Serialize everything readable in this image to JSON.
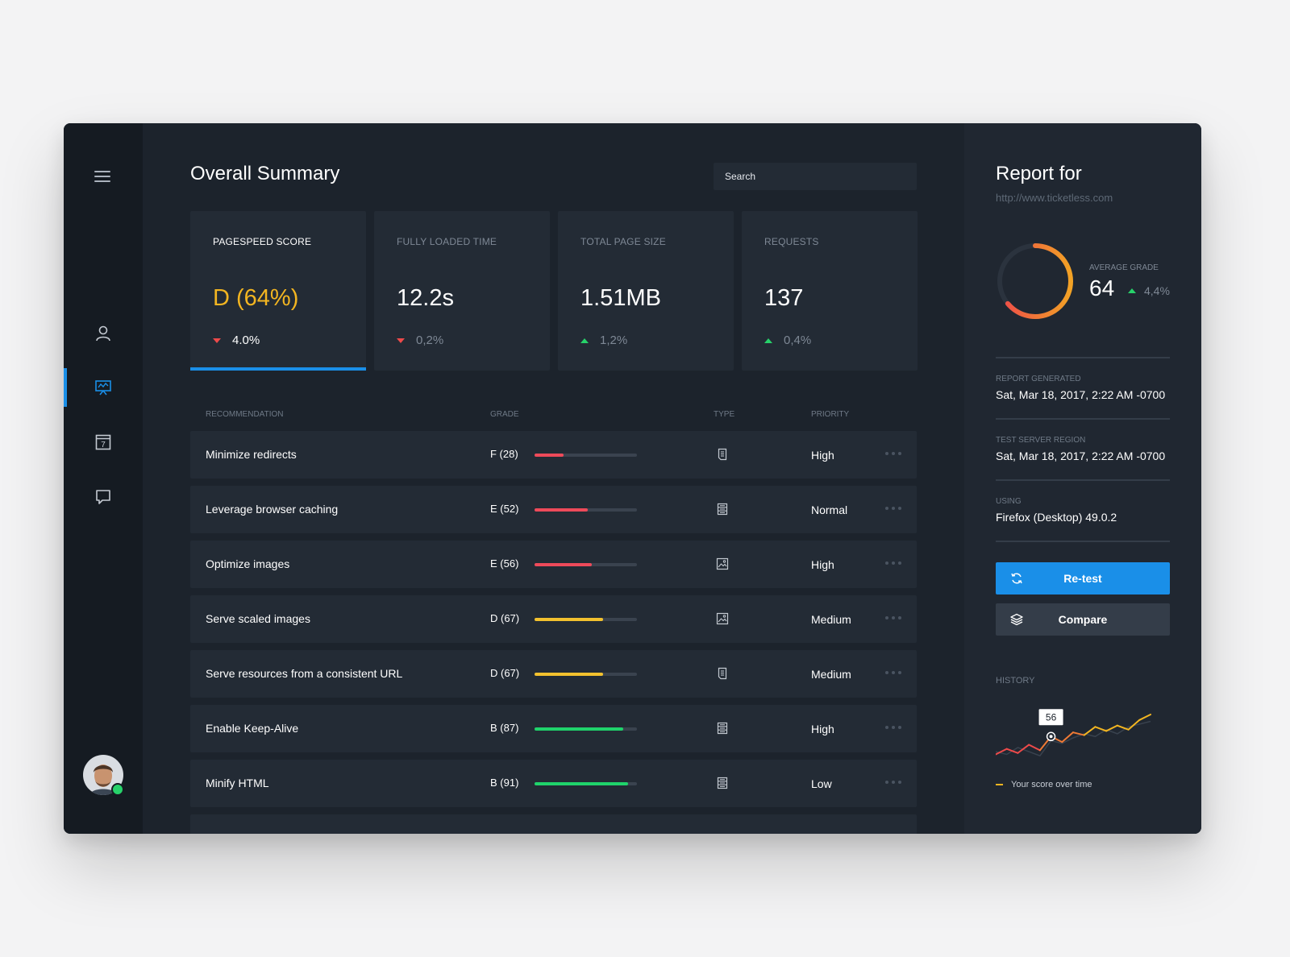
{
  "nav": {
    "items": [
      {
        "name": "user-icon",
        "active": false
      },
      {
        "name": "presentation-icon",
        "active": true
      },
      {
        "name": "calendar-icon",
        "active": false,
        "badge": "7"
      },
      {
        "name": "chat-icon",
        "active": false
      }
    ]
  },
  "header": {
    "title": "Overall Summary",
    "search_placeholder": "Search"
  },
  "cards": [
    {
      "label": "PAGESPEED SCORE",
      "value": "D (64%)",
      "delta": "4.0%",
      "direction": "down",
      "active": true
    },
    {
      "label": "FULLY LOADED TIME",
      "value": "12.2s",
      "delta": "0,2%",
      "direction": "down",
      "active": false
    },
    {
      "label": "TOTAL PAGE SIZE",
      "value": "1.51MB",
      "delta": "1,2%",
      "direction": "up",
      "active": false
    },
    {
      "label": "REQUESTS",
      "value": "137",
      "delta": "0,4%",
      "direction": "up",
      "active": false
    }
  ],
  "table": {
    "headers": {
      "recommendation": "RECOMMENDATION",
      "grade": "GRADE",
      "type": "TYPE",
      "priority": "PRIORITY"
    },
    "rows": [
      {
        "recommendation": "Minimize redirects",
        "grade": "F (28)",
        "score": 28,
        "type_icon": "document-icon",
        "priority": "High"
      },
      {
        "recommendation": "Leverage browser caching",
        "grade": "E (52)",
        "score": 52,
        "type_icon": "server-icon",
        "priority": "Normal"
      },
      {
        "recommendation": "Optimize images",
        "grade": "E (56)",
        "score": 56,
        "type_icon": "image-icon",
        "priority": "High"
      },
      {
        "recommendation": "Serve scaled images",
        "grade": "D (67)",
        "score": 67,
        "type_icon": "image-icon",
        "priority": "Medium"
      },
      {
        "recommendation": "Serve resources from a consistent URL",
        "grade": "D (67)",
        "score": 67,
        "type_icon": "document-icon",
        "priority": "Medium"
      },
      {
        "recommendation": "Enable Keep-Alive",
        "grade": "B (87)",
        "score": 87,
        "type_icon": "server-icon",
        "priority": "High"
      },
      {
        "recommendation": "Minify HTML",
        "grade": "B (91)",
        "score": 91,
        "type_icon": "server-icon",
        "priority": "Low"
      }
    ]
  },
  "report": {
    "title": "Report for",
    "url": "http://www.ticketless.com",
    "average_grade_label": "AVERAGE GRADE",
    "average_grade": "64",
    "average_grade_fraction": 0.64,
    "average_delta": "4,4%",
    "info": [
      {
        "label": "REPORT GENERATED",
        "value": "Sat, Mar 18, 2017, 2:22 AM -0700"
      },
      {
        "label": "TEST SERVER REGION",
        "value": "Sat, Mar 18, 2017, 2:22 AM -0700"
      },
      {
        "label": "USING",
        "value": "Firefox (Desktop) 49.0.2"
      }
    ],
    "retest_label": "Re-test",
    "compare_label": "Compare",
    "history_label": "HISTORY",
    "history_tooltip": "56",
    "history_legend": "Your score over time"
  },
  "colors": {
    "accent": "#1a8fe8",
    "grade_yellow": "#f2b521",
    "bad": "#ee4a4a",
    "good": "#27d26a",
    "bar_red": "#ee4a5a",
    "bar_yellow": "#f2c12e",
    "bar_green": "#1fd36b"
  },
  "chart_data": {
    "type": "line",
    "title": "",
    "series": [
      {
        "values": [
          30,
          38,
          32,
          44,
          36,
          56,
          48,
          62,
          58,
          70,
          64,
          72,
          66,
          80,
          88
        ]
      }
    ],
    "shadow_series": [
      {
        "values": [
          34,
          30,
          40,
          34,
          28,
          50,
          46,
          54,
          60,
          56,
          66,
          60,
          70,
          74,
          78
        ]
      }
    ],
    "highlight": {
      "index": 5,
      "label": "56"
    },
    "ylim": [
      20,
      95
    ]
  }
}
